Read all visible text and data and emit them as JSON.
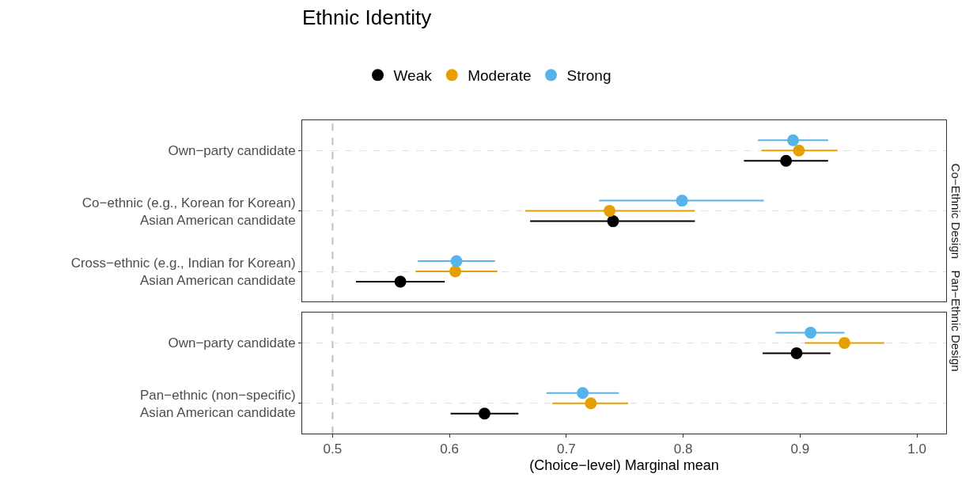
{
  "chart_data": [
    {
      "type": "scatter",
      "title": "Ethnic Identity",
      "categories": [
        "Own−party candidate",
        "Co−ethnic (e.g., Korean for Korean)\nAsian American candidate",
        "Cross−ethnic (e.g., Indian for Korean)\nAsian American candidate"
      ],
      "series": [
        {
          "name": "Weak",
          "color": "#000000",
          "values": [
            0.888,
            0.74,
            0.558
          ],
          "errors": [
            [
              0.852,
              0.924
            ],
            [
              0.669,
              0.81
            ],
            [
              0.52,
              0.596
            ]
          ]
        },
        {
          "name": "Moderate",
          "color": "#e69f00",
          "values": [
            0.899,
            0.737,
            0.605
          ],
          "errors": [
            [
              0.867,
              0.932
            ],
            [
              0.665,
              0.81
            ],
            [
              0.571,
              0.641
            ]
          ]
        },
        {
          "name": "Strong",
          "color": "#56b4e9",
          "values": [
            0.894,
            0.799,
            0.606
          ],
          "errors": [
            [
              0.864,
              0.924
            ],
            [
              0.728,
              0.869
            ],
            [
              0.573,
              0.639
            ]
          ]
        }
      ],
      "annotations": [
        "Co−Ethnic Design"
      ],
      "orientation": "horizontal",
      "xlim": [
        0.474,
        1.025
      ],
      "tick_labels": "y",
      "ref_lines": [
        {
          "axis": "x",
          "value": 0.5,
          "color": "#bebebe",
          "line_style": "dashed"
        }
      ],
      "grid": "y",
      "legend": "top",
      "marker": "circle"
    },
    {
      "type": "scatter",
      "xlabel": "(Choice−level) Marginal mean",
      "categories": [
        "Own−party candidate",
        "Pan−ethnic (non−specific)\nAsian American candidate"
      ],
      "series": [
        {
          "color": "#000000",
          "values": [
            0.897,
            0.63
          ],
          "errors": [
            [
              0.868,
              0.926
            ],
            [
              0.601,
              0.659
            ]
          ]
        },
        {
          "color": "#e69f00",
          "values": [
            0.938,
            0.721
          ],
          "errors": [
            [
              0.904,
              0.972
            ],
            [
              0.688,
              0.753
            ]
          ]
        },
        {
          "color": "#56b4e9",
          "values": [
            0.909,
            0.714
          ],
          "errors": [
            [
              0.879,
              0.938
            ],
            [
              0.683,
              0.745
            ]
          ]
        }
      ],
      "annotations": [
        "Pan−Ethnic Design"
      ],
      "orientation": "horizontal",
      "xlim": [
        0.474,
        1.025
      ],
      "xticks": [
        0.5,
        0.6,
        0.7,
        0.8,
        0.9,
        {
          "value": 1.0,
          "label": "1.0"
        }
      ],
      "ref_lines": [
        {
          "axis": "x",
          "value": 0.5,
          "color": "#bebebe",
          "line_style": "dashed"
        }
      ],
      "grid": "y",
      "marker": "circle"
    }
  ]
}
